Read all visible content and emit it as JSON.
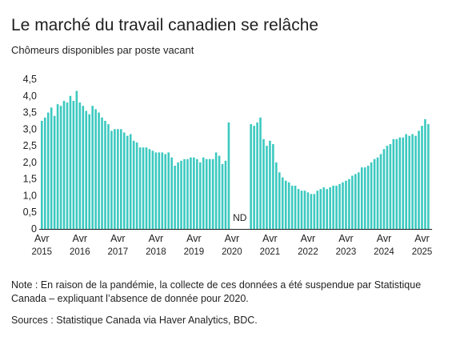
{
  "chart_data": {
    "type": "bar",
    "title": "Le marché du travail canadien se relâche",
    "subtitle": "Chômeurs disponibles par poste vacant",
    "ylabel": "",
    "xlabel": "",
    "ylim": [
      0,
      4.5
    ],
    "yticks": [
      "0",
      "0,5",
      "1,0",
      "1,5",
      "2,0",
      "2,5",
      "3,0",
      "3,5",
      "4,0",
      "4,5"
    ],
    "xtick_month": "Avr",
    "xticks": [
      {
        "month": "Avr",
        "year": "2015",
        "index": 0
      },
      {
        "month": "Avr",
        "year": "2016",
        "index": 12
      },
      {
        "month": "Avr",
        "year": "2017",
        "index": 24
      },
      {
        "month": "Avr",
        "year": "2018",
        "index": 36
      },
      {
        "month": "Avr",
        "year": "2019",
        "index": 48
      },
      {
        "month": "Avr",
        "year": "2020",
        "index": 60
      },
      {
        "month": "Avr",
        "year": "2021",
        "index": 72
      },
      {
        "month": "Avr",
        "year": "2022",
        "index": 84
      },
      {
        "month": "Avr",
        "year": "2023",
        "index": 96
      },
      {
        "month": "Avr",
        "year": "2024",
        "index": 108
      },
      {
        "month": "Avr",
        "year": "2025",
        "index": 120
      }
    ],
    "gap_label": "ND",
    "bar_color": "#3cc9c0",
    "values": [
      3.25,
      3.35,
      3.5,
      3.65,
      3.4,
      3.75,
      3.7,
      3.85,
      3.8,
      4.0,
      3.85,
      4.15,
      3.8,
      3.7,
      3.55,
      3.45,
      3.7,
      3.6,
      3.5,
      3.35,
      3.25,
      3.15,
      2.95,
      3.0,
      3.0,
      3.0,
      2.9,
      2.8,
      2.85,
      2.65,
      2.6,
      2.45,
      2.45,
      2.45,
      2.4,
      2.35,
      2.3,
      2.3,
      2.3,
      2.25,
      2.3,
      2.15,
      1.9,
      2.0,
      2.05,
      2.1,
      2.1,
      2.15,
      2.15,
      2.1,
      2.0,
      2.15,
      2.1,
      2.1,
      2.1,
      2.3,
      2.2,
      1.95,
      2.05,
      3.2,
      null,
      null,
      null,
      null,
      null,
      null,
      3.15,
      3.1,
      3.2,
      3.35,
      2.7,
      2.5,
      2.65,
      2.55,
      2.0,
      1.7,
      1.55,
      1.45,
      1.4,
      1.3,
      1.3,
      1.2,
      1.15,
      1.15,
      1.1,
      1.05,
      1.05,
      1.15,
      1.2,
      1.25,
      1.2,
      1.25,
      1.3,
      1.3,
      1.35,
      1.4,
      1.45,
      1.5,
      1.6,
      1.65,
      1.7,
      1.85,
      1.85,
      1.9,
      2.0,
      2.1,
      2.15,
      2.25,
      2.4,
      2.5,
      2.55,
      2.7,
      2.7,
      2.75,
      2.75,
      2.85,
      2.8,
      2.85,
      2.8,
      2.95,
      3.1,
      3.3,
      3.15
    ]
  },
  "note": "Note : En raison de la pandémie, la collecte de ces données a été suspendue par Statistique Canada – expliquant l’absence de donnée pour 2020.",
  "sources": "Sources : Statistique Canada via Haver Analytics, BDC."
}
